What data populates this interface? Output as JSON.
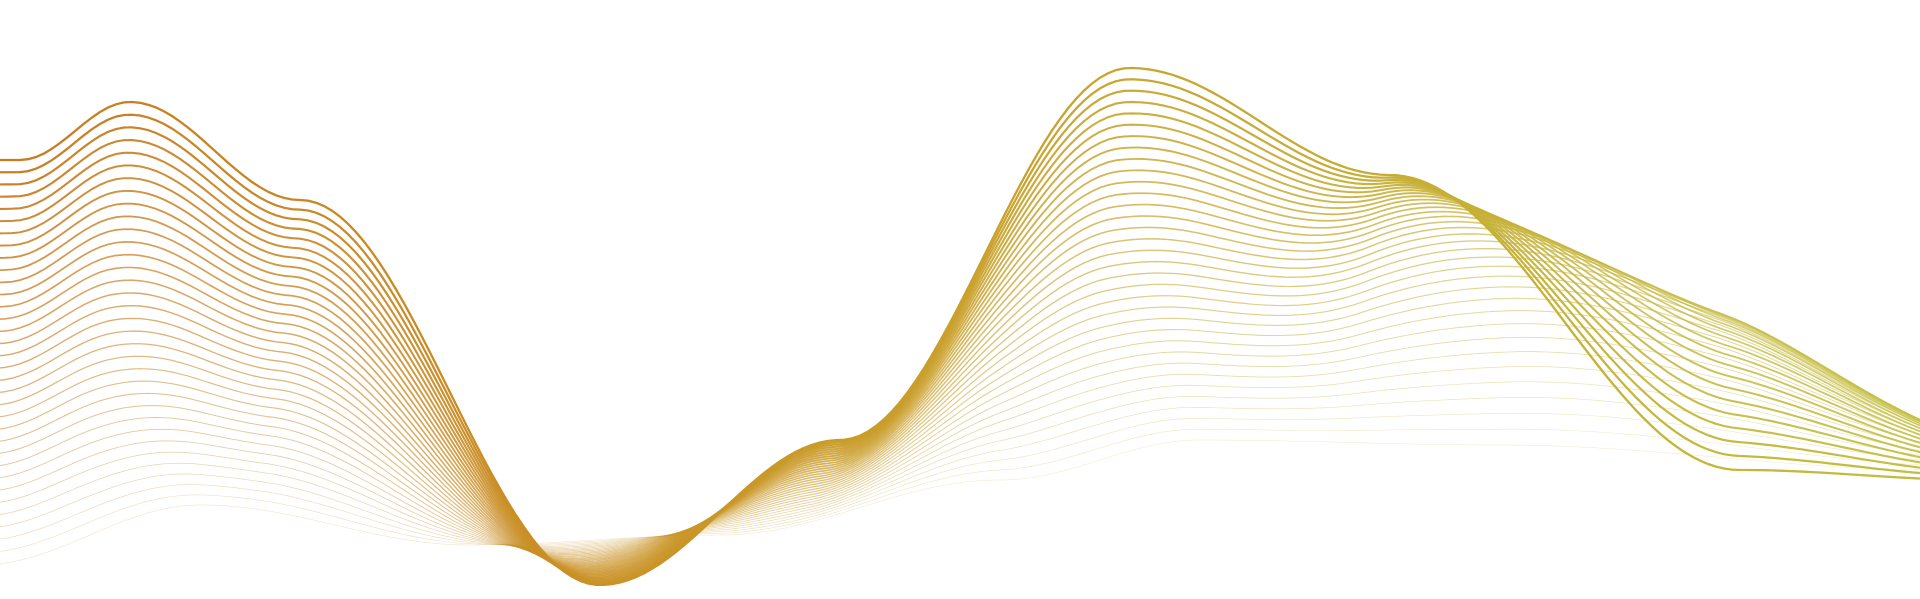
{
  "artwork": {
    "kind": "decorative-line-wave",
    "background_color": "#ffffff",
    "line_count": 34,
    "gradient_colors": [
      "#c97a1e",
      "#c9a02a",
      "#c2bd3c"
    ]
  }
}
